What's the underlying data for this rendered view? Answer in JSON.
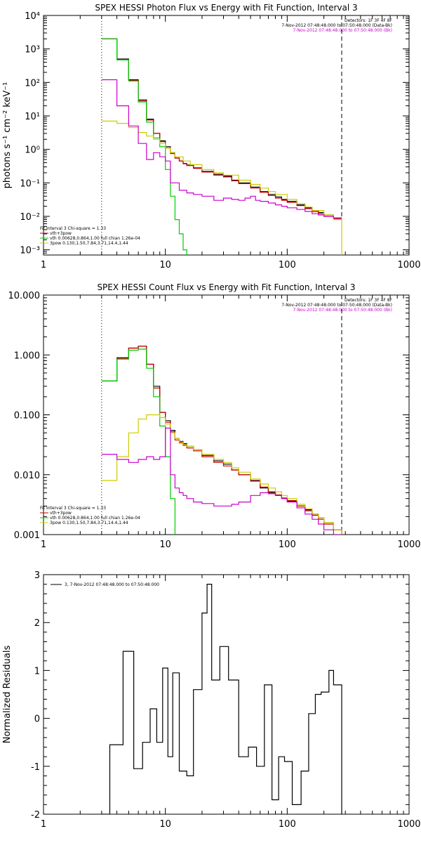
{
  "chart_data": [
    {
      "type": "line",
      "title": "SPEX HESSI Photon Flux vs Energy with Fit Function, Interval 3",
      "xscale": "log",
      "yscale": "log",
      "xlim": [
        1,
        1000
      ],
      "ylim": [
        0.0007,
        10000
      ],
      "xticks": [
        1,
        10,
        100,
        1000
      ],
      "xtick_labels": [
        "1",
        "10",
        "100",
        "1000"
      ],
      "yticks": [
        0.001,
        0.01,
        0.1,
        1,
        10,
        100,
        1000,
        10000
      ],
      "ytick_labels": [
        "10⁻³",
        "10⁻²",
        "10⁻¹",
        "10⁰",
        "10¹",
        "10²",
        "10³",
        "10⁴"
      ],
      "ylabel": "photons s⁻¹ cm⁻² keV⁻¹",
      "xlabel": "",
      "vlines": [
        {
          "x": 3,
          "style": "dotted"
        },
        {
          "x": 280,
          "style": "dashed"
        }
      ],
      "header_lines": [
        {
          "text": "Detectors: 1F 3F 4F 8F",
          "color": "#000000"
        },
        {
          "text": "7-Nov-2012 07:48:48.000 to 07:50:48.000 (Data-Bk)",
          "color": "#000000"
        },
        {
          "text": "7-Nov-2012 07:48:48.000 to 07:50:48.000 (Bk)",
          "color": "#cc00cc"
        }
      ],
      "legend": [
        {
          "text": "Fit Interval 3   Chi-square = 1.33",
          "color": "#000000"
        },
        {
          "text": "vth+3pow",
          "color": "#cc0000"
        },
        {
          "text": "vth 0.00628,0.864,1.00  full chian 1.26e-04",
          "color": "#00cc00"
        },
        {
          "text": "3pow 0.130,1.50,7.84,3.71,14.4,1.44",
          "color": "#cccc00"
        }
      ],
      "series": [
        {
          "color": "#000000",
          "x": [
            3,
            3.5,
            4,
            4.5,
            5,
            5.5,
            6,
            6.5,
            7,
            7.5,
            8,
            8.5,
            9,
            9.5,
            10,
            11,
            12,
            13,
            14,
            15,
            17,
            20,
            25,
            30,
            35,
            40,
            50,
            60,
            70,
            80,
            90,
            100,
            120,
            140,
            160,
            180,
            200,
            240,
            280
          ],
          "y": [
            2000,
            2000,
            500,
            500,
            120,
            120,
            30,
            30,
            8,
            8,
            3,
            3,
            1.8,
            1.8,
            1.2,
            0.8,
            0.55,
            0.45,
            0.38,
            0.34,
            0.28,
            0.22,
            0.18,
            0.16,
            0.12,
            0.1,
            0.075,
            0.055,
            0.045,
            0.038,
            0.032,
            0.028,
            0.022,
            0.018,
            0.015,
            0.013,
            0.011,
            0.009,
            0.009
          ]
        },
        {
          "color": "#cc0000",
          "x": [
            3,
            3.5,
            4,
            4.5,
            5,
            5.5,
            6,
            6.5,
            7,
            7.5,
            8,
            8.5,
            9,
            9.5,
            10,
            11,
            12,
            13,
            14,
            15,
            17,
            20,
            25,
            30,
            35,
            40,
            50,
            60,
            70,
            80,
            90,
            100,
            120,
            140,
            160,
            180,
            200,
            240,
            280
          ],
          "y": [
            2000,
            2000,
            480,
            480,
            115,
            115,
            28,
            28,
            7.5,
            7.5,
            3,
            3,
            1.7,
            1.7,
            1.1,
            0.75,
            0.55,
            0.45,
            0.37,
            0.33,
            0.27,
            0.21,
            0.17,
            0.15,
            0.115,
            0.095,
            0.07,
            0.052,
            0.042,
            0.035,
            0.03,
            0.026,
            0.021,
            0.017,
            0.014,
            0.012,
            0.01,
            0.0085,
            0.0085
          ]
        },
        {
          "color": "#00cc00",
          "x": [
            3,
            3.5,
            4,
            4.5,
            5,
            5.5,
            6,
            6.5,
            7,
            7.5,
            8,
            8.5,
            9,
            9.5,
            10,
            10.5,
            11,
            11.5,
            12,
            13,
            14,
            15
          ],
          "y": [
            2000,
            2000,
            470,
            470,
            110,
            110,
            26,
            26,
            6.5,
            6.5,
            2.2,
            2.2,
            1.2,
            1.2,
            0.25,
            0.25,
            0.04,
            0.04,
            0.008,
            0.003,
            0.001,
            0.0007
          ]
        },
        {
          "color": "#cccc00",
          "x": [
            3,
            4,
            5,
            6,
            7,
            8,
            9,
            10,
            11,
            12,
            14,
            16,
            20,
            25,
            30,
            40,
            50,
            60,
            70,
            80,
            100,
            120,
            140,
            160,
            200,
            240,
            280
          ],
          "y": [
            7,
            6,
            4.5,
            3.2,
            2.5,
            2,
            1.5,
            1.1,
            0.8,
            0.6,
            0.45,
            0.35,
            0.25,
            0.2,
            0.17,
            0.12,
            0.09,
            0.07,
            0.055,
            0.045,
            0.032,
            0.024,
            0.019,
            0.015,
            0.011,
            0.008,
            0.0007
          ]
        },
        {
          "color": "#cc00cc",
          "x": [
            3,
            3.5,
            4,
            4.5,
            5,
            5.5,
            6,
            6.5,
            7,
            7.5,
            8,
            8.5,
            9,
            10,
            11,
            12,
            13,
            14,
            15,
            17,
            20,
            25,
            30,
            35,
            40,
            45,
            50,
            55,
            60,
            70,
            80,
            90,
            100,
            120,
            140,
            160,
            180,
            200,
            240,
            280
          ],
          "y": [
            120,
            120,
            20,
            20,
            5,
            5,
            1.5,
            1.5,
            0.5,
            0.5,
            0.8,
            0.8,
            0.6,
            0.45,
            0.1,
            0.1,
            0.06,
            0.06,
            0.05,
            0.045,
            0.04,
            0.03,
            0.035,
            0.032,
            0.03,
            0.035,
            0.04,
            0.03,
            0.028,
            0.025,
            0.022,
            0.02,
            0.018,
            0.016,
            0.014,
            0.012,
            0.011,
            0.01,
            0.009,
            0.009
          ]
        }
      ]
    },
    {
      "type": "line",
      "title": "SPEX HESSI Count Flux vs Energy with Fit Function, Interval 3",
      "xscale": "log",
      "yscale": "log",
      "xlim": [
        1,
        1000
      ],
      "ylim": [
        0.001,
        10
      ],
      "xticks": [
        1,
        10,
        100,
        1000
      ],
      "xtick_labels": [
        "1",
        "10",
        "100",
        "1000"
      ],
      "yticks": [
        0.001,
        0.01,
        0.1,
        1,
        10
      ],
      "ytick_labels": [
        "0.001",
        "0.010",
        "0.100",
        "1.000",
        "10.000"
      ],
      "ylabel": "",
      "xlabel": "",
      "vlines": [
        {
          "x": 3,
          "style": "dotted"
        },
        {
          "x": 280,
          "style": "dashed"
        }
      ],
      "header_lines": [
        {
          "text": "Detectors: 1F 3F 4F 8F",
          "color": "#000000"
        },
        {
          "text": "7-Nov-2012 07:48:48.000 to 07:50:48.000 (Data-Bk)",
          "color": "#000000"
        },
        {
          "text": "7-Nov-2012 07:48:48.000 to 07:50:48.000 (Bk)",
          "color": "#cc00cc"
        }
      ],
      "legend": [
        {
          "text": "Fit Interval 3   Chi-square = 1.33",
          "color": "#000000"
        },
        {
          "text": "vth+3pow",
          "color": "#cc0000"
        },
        {
          "text": "vth 0.00628,0.864,1.00  full chian 1.26e-04",
          "color": "#00cc00"
        },
        {
          "text": "3pow 0.130,1.50,7.84,3.71,14.4,1.44",
          "color": "#cccc00"
        }
      ],
      "series": [
        {
          "color": "#000000",
          "x": [
            3,
            3.5,
            4,
            4.5,
            5,
            5.5,
            6,
            6.5,
            7,
            7.5,
            8,
            8.5,
            9,
            9.5,
            10,
            11,
            12,
            13,
            14,
            15,
            17,
            20,
            25,
            30,
            35,
            40,
            50,
            60,
            70,
            80,
            90,
            100,
            120,
            140,
            160,
            180,
            200,
            240,
            280
          ],
          "y": [
            0.37,
            0.37,
            0.9,
            0.9,
            1.3,
            1.3,
            1.4,
            1.4,
            0.7,
            0.7,
            0.3,
            0.3,
            0.11,
            0.11,
            0.08,
            0.055,
            0.04,
            0.036,
            0.033,
            0.03,
            0.026,
            0.021,
            0.017,
            0.015,
            0.012,
            0.01,
            0.008,
            0.006,
            0.005,
            0.0045,
            0.004,
            0.0036,
            0.003,
            0.0026,
            0.0022,
            0.0019,
            0.0016,
            0.0012,
            0.001
          ]
        },
        {
          "color": "#cc0000",
          "x": [
            3,
            3.5,
            4,
            4.5,
            5,
            5.5,
            6,
            6.5,
            7,
            7.5,
            8,
            8.5,
            9,
            9.5,
            10,
            11,
            12,
            13,
            14,
            15,
            17,
            20,
            25,
            30,
            35,
            40,
            50,
            60,
            70,
            80,
            90,
            100,
            120,
            140,
            160,
            180,
            200,
            240,
            280
          ],
          "y": [
            0.37,
            0.37,
            0.88,
            0.88,
            1.3,
            1.3,
            1.4,
            1.4,
            0.7,
            0.7,
            0.28,
            0.28,
            0.11,
            0.11,
            0.075,
            0.052,
            0.038,
            0.034,
            0.031,
            0.028,
            0.025,
            0.02,
            0.016,
            0.014,
            0.012,
            0.01,
            0.0078,
            0.0062,
            0.0052,
            0.0046,
            0.0041,
            0.0037,
            0.003,
            0.0025,
            0.0021,
            0.0018,
            0.0015,
            0.0012,
            0.001
          ]
        },
        {
          "color": "#00cc00",
          "x": [
            3,
            3.5,
            4,
            4.5,
            5,
            5.5,
            6,
            6.5,
            7,
            7.5,
            8,
            8.5,
            9,
            9.5,
            10,
            10.5,
            11,
            11.5,
            12
          ],
          "y": [
            0.37,
            0.37,
            0.85,
            0.85,
            1.2,
            1.2,
            1.25,
            1.25,
            0.6,
            0.6,
            0.2,
            0.2,
            0.065,
            0.065,
            0.02,
            0.02,
            0.004,
            0.004,
            0.001
          ]
        },
        {
          "color": "#cccc00",
          "x": [
            3,
            3.5,
            4,
            4.5,
            5,
            5.5,
            6,
            6.5,
            7,
            7.5,
            8,
            8.5,
            9,
            9.5,
            10,
            11,
            12,
            13,
            14,
            15,
            17,
            20,
            25,
            30,
            35,
            40,
            50,
            60,
            70,
            80,
            90,
            100,
            120,
            140,
            160,
            180,
            200,
            240,
            280
          ],
          "y": [
            0.008,
            0.008,
            0.02,
            0.02,
            0.05,
            0.05,
            0.085,
            0.085,
            0.1,
            0.1,
            0.1,
            0.1,
            0.09,
            0.09,
            0.07,
            0.05,
            0.04,
            0.035,
            0.032,
            0.03,
            0.026,
            0.022,
            0.018,
            0.016,
            0.013,
            0.011,
            0.0085,
            0.007,
            0.006,
            0.0052,
            0.0045,
            0.004,
            0.0032,
            0.0027,
            0.0022,
            0.0019,
            0.0016,
            0.0012,
            0.001
          ]
        },
        {
          "color": "#cc00cc",
          "x": [
            3,
            3.5,
            4,
            4.5,
            5,
            5.5,
            6,
            6.5,
            7,
            7.5,
            8,
            8.5,
            9,
            9.5,
            10,
            11,
            12,
            13,
            14,
            15,
            17,
            20,
            25,
            30,
            35,
            40,
            50,
            60,
            70,
            80,
            90,
            100,
            120,
            140,
            160,
            180,
            200,
            240,
            280
          ],
          "y": [
            0.022,
            0.022,
            0.018,
            0.018,
            0.016,
            0.016,
            0.018,
            0.018,
            0.02,
            0.02,
            0.018,
            0.018,
            0.02,
            0.02,
            0.06,
            0.01,
            0.006,
            0.005,
            0.0045,
            0.004,
            0.0035,
            0.0033,
            0.003,
            0.003,
            0.0032,
            0.0035,
            0.0045,
            0.005,
            0.0048,
            0.0045,
            0.004,
            0.0035,
            0.0028,
            0.0022,
            0.0018,
            0.0015,
            0.0012,
            0.001,
            0.001
          ]
        }
      ]
    },
    {
      "type": "line",
      "title": "",
      "xscale": "log",
      "yscale": "linear",
      "xlim": [
        1,
        1000
      ],
      "ylim": [
        -2,
        3
      ],
      "xticks": [
        1,
        10,
        100,
        1000
      ],
      "xtick_labels": [
        "1",
        "10",
        "100",
        "1000"
      ],
      "yticks": [
        -2,
        -1,
        0,
        1,
        2,
        3
      ],
      "ytick_labels": [
        "-2",
        "-1",
        "0",
        "1",
        "2",
        "3"
      ],
      "ylabel": "Normalized Residuals",
      "xlabel": "",
      "legend": [
        {
          "text": "3,  7-Nov-2012 07:48:48.000 to 07:50:48.000",
          "color": "#000000"
        }
      ],
      "series": [
        {
          "color": "#000000",
          "x": [
            3,
            3.5,
            4,
            4.5,
            5,
            5.5,
            6,
            6.5,
            7,
            7.5,
            8,
            8.5,
            9,
            9.5,
            10,
            10.5,
            11,
            11.5,
            12,
            13,
            14,
            15,
            16,
            17,
            18,
            20,
            22,
            24,
            26,
            28,
            30,
            33,
            36,
            40,
            44,
            48,
            52,
            56,
            60,
            65,
            70,
            75,
            80,
            85,
            90,
            95,
            100,
            110,
            120,
            130,
            140,
            150,
            160,
            170,
            180,
            190,
            200,
            220,
            240,
            260,
            280
          ],
          "y": [
            -2,
            -0.55,
            -0.55,
            1.4,
            1.4,
            -1.05,
            -1.05,
            -0.5,
            -0.5,
            0.2,
            0.2,
            -0.5,
            -0.5,
            1.05,
            1.05,
            -0.8,
            -0.8,
            0.95,
            0.95,
            -1.1,
            -1.1,
            -1.2,
            -1.2,
            0.6,
            0.6,
            2.2,
            2.8,
            0.8,
            0.8,
            1.5,
            1.5,
            0.8,
            0.8,
            -0.8,
            -0.8,
            -0.6,
            -0.6,
            -1.0,
            -1.0,
            0.7,
            0.7,
            -1.7,
            -1.7,
            -0.8,
            -0.8,
            -0.9,
            -0.9,
            -1.8,
            -1.8,
            -1.1,
            -1.1,
            0.1,
            0.1,
            0.5,
            0.5,
            0.55,
            0.55,
            1.0,
            0.7,
            0.7,
            -2
          ]
        }
      ]
    }
  ]
}
